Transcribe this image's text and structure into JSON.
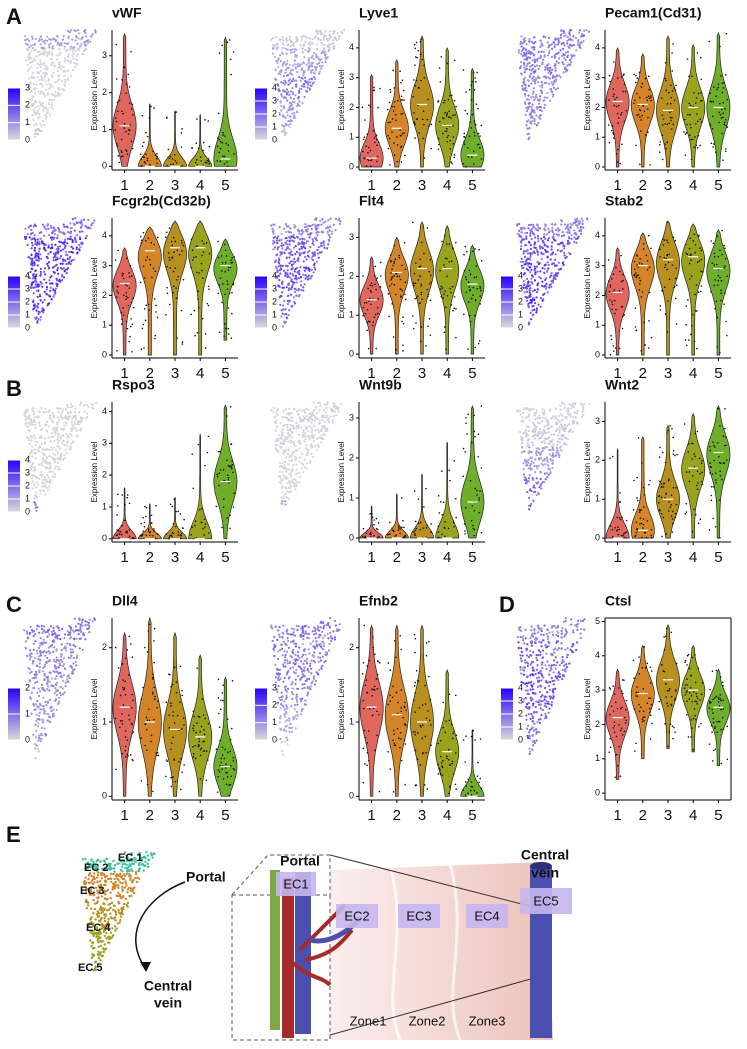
{
  "chart_data": [
    {
      "panel": "A",
      "type": "violin",
      "title": "vWF",
      "ylabel": "Expression Level",
      "categories": [
        "1",
        "2",
        "3",
        "4",
        "5"
      ],
      "values": [
        1.1,
        0,
        0,
        0,
        0.2
      ],
      "max": [
        3.6,
        1.7,
        1.5,
        1.4,
        3.5
      ],
      "min": [
        0,
        0,
        0,
        0,
        0
      ],
      "ylim": [
        -0.1,
        3.7
      ],
      "yticks": [
        0,
        1,
        2,
        3
      ],
      "colorbar_ticks": [
        0,
        1,
        2,
        3
      ],
      "colors": [
        "#e0675e",
        "#d4852a",
        "#b8901f",
        "#9aa31e",
        "#6fae2a"
      ]
    },
    {
      "type": "violin",
      "title": "Lyve1",
      "ylabel": "Expression Level",
      "categories": [
        "1",
        "2",
        "3",
        "4",
        "5"
      ],
      "values": [
        0.3,
        1.3,
        2.1,
        1.4,
        0.4
      ],
      "max": [
        3.1,
        3.6,
        4.4,
        4.0,
        3.3
      ],
      "min": [
        0,
        0,
        0,
        0,
        0
      ],
      "ylim": [
        -0.1,
        4.6
      ],
      "yticks": [
        0,
        1,
        2,
        3,
        4
      ],
      "colorbar_ticks": [
        0,
        1,
        2,
        3,
        4
      ],
      "colors": [
        "#e0675e",
        "#d4852a",
        "#b8901f",
        "#9aa31e",
        "#6fae2a"
      ]
    },
    {
      "type": "violin",
      "title": "Pecam1(Cd31)",
      "ylabel": "Expression Level",
      "categories": [
        "1",
        "2",
        "3",
        "4",
        "5"
      ],
      "values": [
        2.2,
        2.1,
        1.9,
        2.0,
        2.0
      ],
      "max": [
        4.0,
        3.8,
        4.4,
        4.1,
        4.5
      ],
      "min": [
        0,
        0,
        0,
        0,
        0
      ],
      "ylim": [
        -0.1,
        4.6
      ],
      "yticks": [
        0,
        1,
        2,
        3,
        4
      ],
      "colors": [
        "#e0675e",
        "#d4852a",
        "#b8901f",
        "#9aa31e",
        "#6fae2a"
      ]
    },
    {
      "type": "violin",
      "title": "Fcgr2b(Cd32b)",
      "ylabel": "Expression Level",
      "categories": [
        "1",
        "2",
        "3",
        "4",
        "5"
      ],
      "values": [
        2.4,
        3.5,
        3.6,
        3.6,
        3.0
      ],
      "max": [
        3.6,
        4.3,
        4.5,
        4.5,
        3.9
      ],
      "min": [
        0,
        0,
        0,
        0,
        0.5
      ],
      "ylim": [
        -0.1,
        4.6
      ],
      "yticks": [
        0,
        1,
        2,
        3,
        4
      ],
      "colorbar_ticks": [
        0,
        1,
        2,
        3,
        4
      ],
      "colors": [
        "#e0675e",
        "#d4852a",
        "#b8901f",
        "#9aa31e",
        "#6fae2a"
      ]
    },
    {
      "type": "violin",
      "title": "Flt4",
      "ylabel": "Expression Level",
      "categories": [
        "1",
        "2",
        "3",
        "4",
        "5"
      ],
      "values": [
        1.4,
        2.1,
        2.2,
        2.2,
        1.8
      ],
      "max": [
        2.5,
        3.0,
        3.4,
        3.3,
        2.8
      ],
      "min": [
        0,
        0,
        0,
        0,
        0
      ],
      "ylim": [
        -0.1,
        3.5
      ],
      "yticks": [
        0,
        1,
        2,
        3
      ],
      "colorbar_ticks": [
        0,
        1,
        2,
        3,
        4
      ],
      "colors": [
        "#e0675e",
        "#d4852a",
        "#b8901f",
        "#9aa31e",
        "#6fae2a"
      ]
    },
    {
      "type": "violin",
      "title": "Stab2",
      "ylabel": "Expression Level",
      "categories": [
        "1",
        "2",
        "3",
        "4",
        "5"
      ],
      "values": [
        2.1,
        3.0,
        3.2,
        3.3,
        2.9
      ],
      "max": [
        3.6,
        4.1,
        4.5,
        4.4,
        4.2
      ],
      "min": [
        0,
        0,
        0,
        0,
        0
      ],
      "ylim": [
        -0.1,
        4.6
      ],
      "yticks": [
        0,
        1,
        2,
        3,
        4
      ],
      "colorbar_ticks": [
        0,
        1,
        2,
        3,
        4
      ],
      "colors": [
        "#e0675e",
        "#d4852a",
        "#b8901f",
        "#9aa31e",
        "#6fae2a"
      ]
    },
    {
      "panel": "B",
      "type": "violin",
      "title": "Rspo3",
      "ylabel": "Expression Level",
      "categories": [
        "1",
        "2",
        "3",
        "4",
        "5"
      ],
      "values": [
        0,
        0,
        0,
        0,
        1.8
      ],
      "max": [
        1.6,
        1.1,
        1.3,
        3.3,
        4.2
      ],
      "min": [
        0,
        0,
        0,
        0,
        0
      ],
      "ylim": [
        -0.1,
        4.3
      ],
      "yticks": [
        0,
        1,
        2,
        3,
        4
      ],
      "colorbar_ticks": [
        0,
        1,
        2,
        3,
        4
      ],
      "colors": [
        "#e0675e",
        "#d4852a",
        "#b8901f",
        "#9aa31e",
        "#6fae2a"
      ]
    },
    {
      "type": "violin",
      "title": "Wnt9b",
      "ylabel": "Expression Level",
      "categories": [
        "1",
        "2",
        "3",
        "4",
        "5"
      ],
      "values": [
        0,
        0,
        0,
        0,
        0.9
      ],
      "max": [
        0.8,
        1.1,
        1.6,
        2.4,
        3.3
      ],
      "min": [
        0,
        0,
        0,
        0,
        0
      ],
      "ylim": [
        -0.1,
        3.4
      ],
      "yticks": [
        0,
        1,
        2,
        3
      ],
      "colors": [
        "#e0675e",
        "#d4852a",
        "#b8901f",
        "#9aa31e",
        "#6fae2a"
      ]
    },
    {
      "type": "violin",
      "title": "Wnt2",
      "ylabel": "Expression Level",
      "categories": [
        "1",
        "2",
        "3",
        "4",
        "5"
      ],
      "values": [
        0,
        0.2,
        1.0,
        1.8,
        2.2
      ],
      "max": [
        2.3,
        2.6,
        2.9,
        3.2,
        3.4
      ],
      "min": [
        0,
        0,
        0,
        0,
        0
      ],
      "ylim": [
        -0.1,
        3.5
      ],
      "yticks": [
        0,
        1,
        2,
        3
      ],
      "colors": [
        "#e0675e",
        "#d4852a",
        "#b8901f",
        "#9aa31e",
        "#6fae2a"
      ]
    },
    {
      "panel": "C",
      "type": "violin",
      "title": "Dll4",
      "ylabel": "Expression Level",
      "categories": [
        "1",
        "2",
        "3",
        "4",
        "5"
      ],
      "values": [
        1.2,
        1.0,
        0.9,
        0.8,
        0.4
      ],
      "max": [
        2.2,
        2.4,
        2.2,
        1.9,
        1.6
      ],
      "min": [
        0,
        0,
        0,
        0,
        0
      ],
      "ylim": [
        -0.05,
        2.4
      ],
      "yticks": [
        0,
        1,
        2
      ],
      "colorbar_ticks": [
        0,
        1,
        2
      ],
      "colors": [
        "#e0675e",
        "#d4852a",
        "#b8901f",
        "#9aa31e",
        "#6fae2a"
      ]
    },
    {
      "type": "violin",
      "title": "Efnb2",
      "ylabel": "Expression Level",
      "categories": [
        "1",
        "2",
        "3",
        "4",
        "5"
      ],
      "values": [
        1.2,
        1.1,
        1.0,
        0.6,
        0
      ],
      "max": [
        2.3,
        2.3,
        2.3,
        1.7,
        0.9
      ],
      "min": [
        0,
        0,
        0,
        0,
        0
      ],
      "ylim": [
        -0.05,
        2.4
      ],
      "yticks": [
        0,
        1,
        2
      ],
      "colorbar_ticks": [
        0,
        1,
        2,
        3
      ],
      "colors": [
        "#e0675e",
        "#d4852a",
        "#b8901f",
        "#9aa31e",
        "#6fae2a"
      ]
    },
    {
      "panel": "D",
      "type": "violin",
      "title": "Ctsl",
      "ylabel": "Expression Level",
      "categories": [
        "1",
        "2",
        "3",
        "4",
        "5"
      ],
      "values": [
        2.2,
        2.9,
        3.3,
        3.0,
        2.5
      ],
      "max": [
        3.6,
        4.3,
        4.9,
        4.3,
        3.6
      ],
      "min": [
        0.4,
        1.0,
        1.3,
        1.2,
        0.8
      ],
      "ylim": [
        -0.2,
        5.1
      ],
      "yticks": [
        0,
        1,
        2,
        3,
        4,
        5
      ],
      "colorbar_ticks": [
        0,
        1,
        2,
        3,
        4
      ],
      "colors": [
        "#e0675e",
        "#d4852a",
        "#b8901f",
        "#9aa31e",
        "#6fae2a"
      ]
    }
  ],
  "diagram": {
    "panel": "E",
    "umap_labels": [
      "EC 1",
      "EC 2",
      "EC 3",
      "EC 4",
      "EC 5"
    ],
    "portal": "Portal",
    "central_vein": [
      "Central",
      "vein"
    ],
    "cells": [
      "EC1",
      "EC2",
      "EC3",
      "EC4",
      "EC5"
    ],
    "zones": [
      "Zone1",
      "Zone2",
      "Zone3"
    ],
    "portal_label": "Portal",
    "central_label": [
      "Central",
      "vein"
    ]
  }
}
